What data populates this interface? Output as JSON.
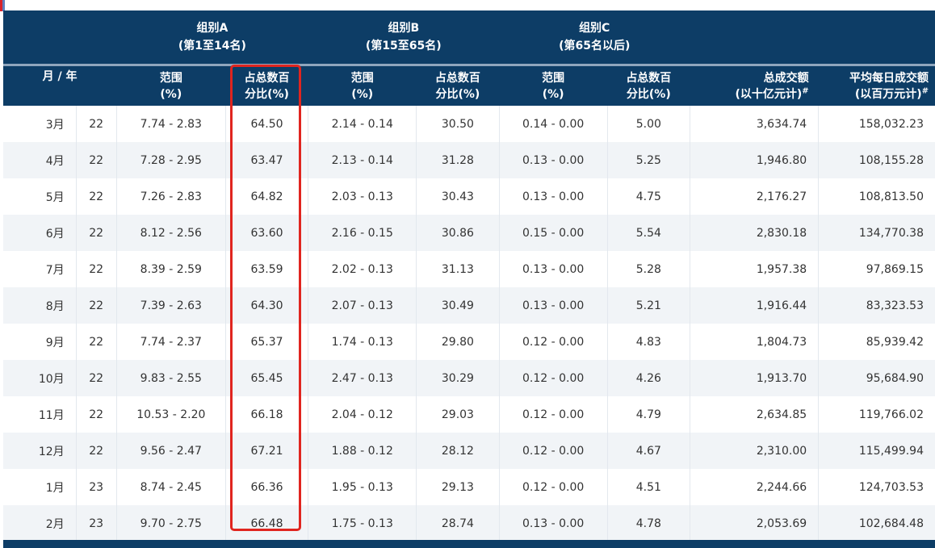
{
  "accent_colors": {
    "header_bg": "#0d3d66",
    "highlight": "#e0251f",
    "row_alt": "#f1f4f7"
  },
  "groups": [
    {
      "name": "组别A",
      "sub": "(第1至14名)"
    },
    {
      "name": "组别B",
      "sub": "(第15至65名)"
    },
    {
      "name": "组别C",
      "sub": "(第65名以后)"
    }
  ],
  "headers": {
    "month_year": "月 / 年",
    "a_range_1": "范围",
    "a_range_2": "(%)",
    "a_pct_1": "占总数百",
    "a_pct_2": "分比(%)",
    "b_range_1": "范围",
    "b_range_2": "(%)",
    "b_pct_1": "占总数百",
    "b_pct_2": "分比(%)",
    "c_range_1": "范围",
    "c_range_2": "(%)",
    "c_pct_1": "占总数百",
    "c_pct_2": "分比(%)",
    "total_1": "总成交额",
    "total_2": "(以十亿元计)",
    "total_mark": "#",
    "avg_1": "平均每日成交额",
    "avg_2": "(以百万元计)",
    "avg_mark": "#"
  },
  "rows": [
    {
      "month": "3月",
      "year": "22",
      "a_range": "7.74 - 2.83",
      "a_pct": "64.50",
      "b_range": "2.14 - 0.14",
      "b_pct": "30.50",
      "c_range": "0.14 - 0.00",
      "c_pct": "5.00",
      "total": "3,634.74",
      "avg": "158,032.23"
    },
    {
      "month": "4月",
      "year": "22",
      "a_range": "7.28 - 2.95",
      "a_pct": "63.47",
      "b_range": "2.13 - 0.14",
      "b_pct": "31.28",
      "c_range": "0.13 - 0.00",
      "c_pct": "5.25",
      "total": "1,946.80",
      "avg": "108,155.28"
    },
    {
      "month": "5月",
      "year": "22",
      "a_range": "7.26 - 2.83",
      "a_pct": "64.82",
      "b_range": "2.03 - 0.13",
      "b_pct": "30.43",
      "c_range": "0.13 - 0.00",
      "c_pct": "4.75",
      "total": "2,176.27",
      "avg": "108,813.50"
    },
    {
      "month": "6月",
      "year": "22",
      "a_range": "8.12 - 2.56",
      "a_pct": "63.60",
      "b_range": "2.16 - 0.15",
      "b_pct": "30.86",
      "c_range": "0.15 - 0.00",
      "c_pct": "5.54",
      "total": "2,830.18",
      "avg": "134,770.38"
    },
    {
      "month": "7月",
      "year": "22",
      "a_range": "8.39 - 2.59",
      "a_pct": "63.59",
      "b_range": "2.02 - 0.13",
      "b_pct": "31.13",
      "c_range": "0.13 - 0.00",
      "c_pct": "5.28",
      "total": "1,957.38",
      "avg": "97,869.15"
    },
    {
      "month": "8月",
      "year": "22",
      "a_range": "7.39 - 2.63",
      "a_pct": "64.30",
      "b_range": "2.07 - 0.13",
      "b_pct": "30.49",
      "c_range": "0.13 - 0.00",
      "c_pct": "5.21",
      "total": "1,916.44",
      "avg": "83,323.53"
    },
    {
      "month": "9月",
      "year": "22",
      "a_range": "7.74 - 2.37",
      "a_pct": "65.37",
      "b_range": "1.74 - 0.13",
      "b_pct": "29.80",
      "c_range": "0.12 - 0.00",
      "c_pct": "4.83",
      "total": "1,804.73",
      "avg": "85,939.42"
    },
    {
      "month": "10月",
      "year": "22",
      "a_range": "9.83 - 2.55",
      "a_pct": "65.45",
      "b_range": "2.47 - 0.13",
      "b_pct": "30.29",
      "c_range": "0.12 - 0.00",
      "c_pct": "4.26",
      "total": "1,913.70",
      "avg": "95,684.90"
    },
    {
      "month": "11月",
      "year": "22",
      "a_range": "10.53 - 2.20",
      "a_pct": "66.18",
      "b_range": "2.04 - 0.12",
      "b_pct": "29.03",
      "c_range": "0.12 - 0.00",
      "c_pct": "4.79",
      "total": "2,634.85",
      "avg": "119,766.02"
    },
    {
      "month": "12月",
      "year": "22",
      "a_range": "9.56 - 2.47",
      "a_pct": "67.21",
      "b_range": "1.88 - 0.12",
      "b_pct": "28.12",
      "c_range": "0.12 - 0.00",
      "c_pct": "4.67",
      "total": "2,310.00",
      "avg": "115,499.94"
    },
    {
      "month": "1月",
      "year": "23",
      "a_range": "8.74 - 2.45",
      "a_pct": "66.36",
      "b_range": "1.95 - 0.13",
      "b_pct": "29.13",
      "c_range": "0.12 - 0.00",
      "c_pct": "4.51",
      "total": "2,244.66",
      "avg": "124,703.53"
    },
    {
      "month": "2月",
      "year": "23",
      "a_range": "9.70 - 2.75",
      "a_pct": "66.48",
      "b_range": "1.75 - 0.13",
      "b_pct": "28.74",
      "c_range": "0.13 - 0.00",
      "c_pct": "4.78",
      "total": "2,053.69",
      "avg": "102,684.48"
    }
  ]
}
